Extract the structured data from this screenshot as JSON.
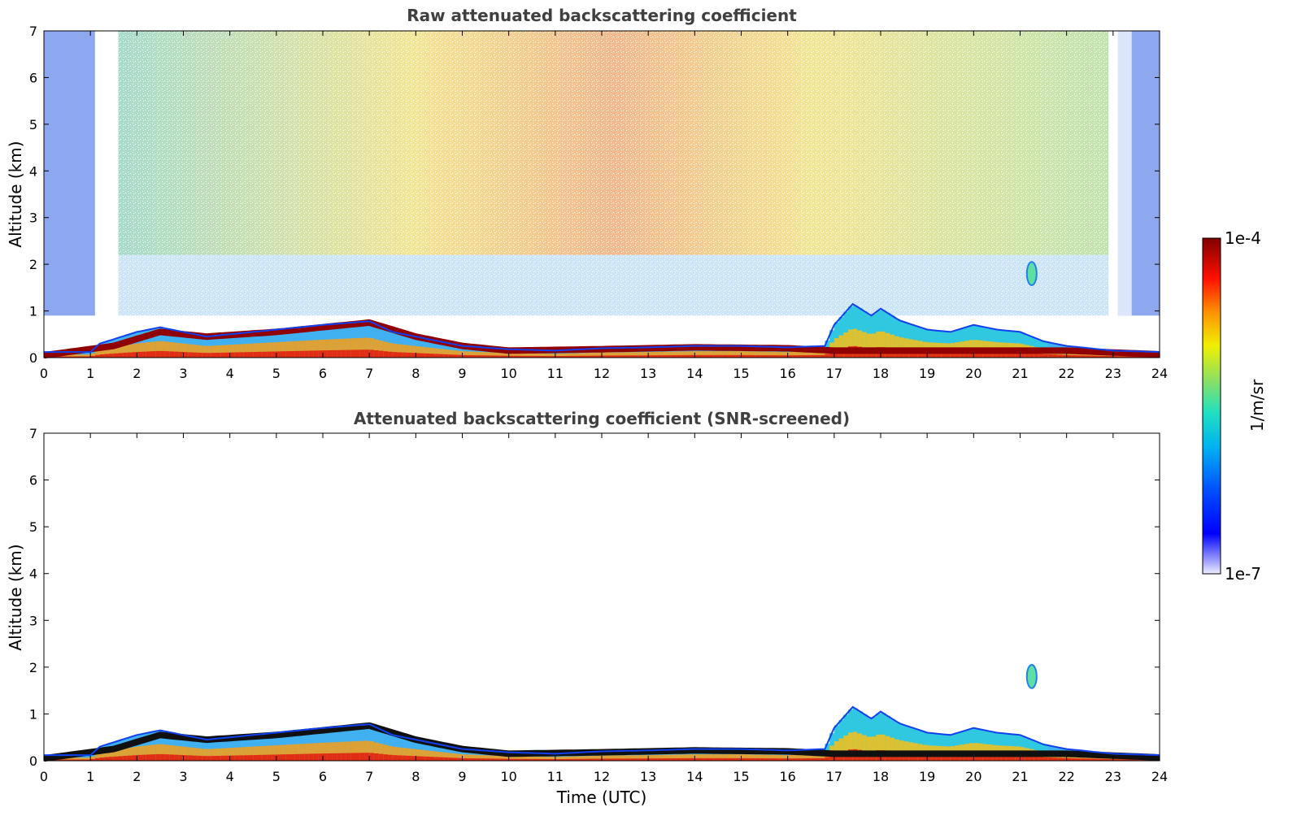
{
  "chart_data": [
    {
      "type": "heatmap",
      "title": "Raw attenuated backscattering coefficient",
      "xlabel": "",
      "ylabel": "Altitude (km)",
      "xlim": [
        0,
        24
      ],
      "ylim": [
        0,
        7
      ],
      "xticks": [
        "0",
        "1",
        "2",
        "3",
        "4",
        "5",
        "6",
        "7",
        "8",
        "9",
        "10",
        "11",
        "12",
        "13",
        "14",
        "15",
        "16",
        "17",
        "18",
        "19",
        "20",
        "21",
        "22",
        "23",
        "24"
      ],
      "yticks": [
        "0",
        "1",
        "2",
        "3",
        "4",
        "5",
        "6",
        "7"
      ],
      "noise_gap_hours": [
        [
          1.1,
          1.25
        ],
        [
          1.35,
          1.55
        ],
        [
          23.0,
          23.4
        ]
      ],
      "low_snr_blue_hours": [
        [
          0,
          1.1
        ],
        [
          23.1,
          24
        ]
      ],
      "boundary_layer_top_km": [
        [
          0,
          0.12
        ],
        [
          1,
          0.12
        ],
        [
          1.2,
          0.3
        ],
        [
          2,
          0.55
        ],
        [
          2.5,
          0.65
        ],
        [
          3,
          0.55
        ],
        [
          3.5,
          0.45
        ],
        [
          4,
          0.5
        ],
        [
          5,
          0.6
        ],
        [
          6,
          0.7
        ],
        [
          7,
          0.78
        ],
        [
          7.5,
          0.55
        ],
        [
          8,
          0.45
        ],
        [
          9,
          0.25
        ],
        [
          10,
          0.18
        ],
        [
          11,
          0.15
        ],
        [
          12,
          0.2
        ],
        [
          13,
          0.22
        ],
        [
          14,
          0.25
        ],
        [
          15,
          0.25
        ],
        [
          16,
          0.22
        ],
        [
          16.8,
          0.25
        ],
        [
          17,
          0.7
        ],
        [
          17.4,
          1.15
        ],
        [
          17.8,
          0.9
        ],
        [
          18,
          1.05
        ],
        [
          18.4,
          0.8
        ],
        [
          19,
          0.6
        ],
        [
          19.5,
          0.55
        ],
        [
          20,
          0.7
        ],
        [
          20.5,
          0.6
        ],
        [
          21,
          0.55
        ],
        [
          21.5,
          0.35
        ],
        [
          22,
          0.25
        ],
        [
          23,
          0.15
        ],
        [
          24,
          0.12
        ]
      ],
      "aerosol_layer_center_km": [
        [
          0,
          0.05
        ],
        [
          1.5,
          0.25
        ],
        [
          2.5,
          0.55
        ],
        [
          3.5,
          0.45
        ],
        [
          5,
          0.55
        ],
        [
          6,
          0.65
        ],
        [
          7,
          0.75
        ],
        [
          8,
          0.45
        ],
        [
          9,
          0.25
        ],
        [
          10,
          0.15
        ],
        [
          12,
          0.18
        ],
        [
          14,
          0.22
        ],
        [
          16,
          0.2
        ],
        [
          17,
          0.15
        ],
        [
          18,
          0.15
        ],
        [
          20,
          0.15
        ],
        [
          22,
          0.15
        ],
        [
          24,
          0.07
        ]
      ],
      "elevated_layer": {
        "time_h": 21.25,
        "altitude_km": 1.8,
        "depth_km": 0.5
      }
    },
    {
      "type": "heatmap",
      "title": "Attenuated backscattering coefficient (SNR-screened)",
      "xlabel": "Time (UTC)",
      "ylabel": "Altitude (km)",
      "xlim": [
        0,
        24
      ],
      "ylim": [
        0,
        7
      ],
      "xticks": [
        "0",
        "1",
        "2",
        "3",
        "4",
        "5",
        "6",
        "7",
        "8",
        "9",
        "10",
        "11",
        "12",
        "13",
        "14",
        "15",
        "16",
        "17",
        "18",
        "19",
        "20",
        "21",
        "22",
        "23",
        "24"
      ],
      "yticks": [
        "0",
        "1",
        "2",
        "3",
        "4",
        "5",
        "6",
        "7"
      ]
    }
  ],
  "colorbar": {
    "label": "1/m/sr",
    "max_label": "1e-4",
    "min_label": "1e-7",
    "scale": "log",
    "colormap": [
      "#f0f0ff",
      "#0000ff",
      "#00a0ff",
      "#00e0e0",
      "#80e080",
      "#f0f000",
      "#ff8000",
      "#ff0000",
      "#800000"
    ]
  }
}
